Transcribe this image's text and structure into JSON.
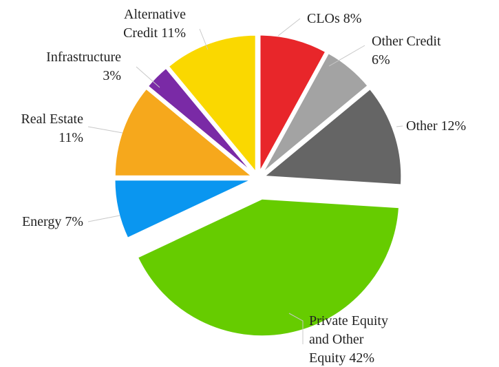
{
  "chart_data": {
    "type": "pie",
    "title": "",
    "unit": "%",
    "slices": [
      {
        "name": "CLOs",
        "value": 8,
        "color": "#e8262a",
        "label_lines": [
          "CLOs 8%"
        ]
      },
      {
        "name": "Other Credit",
        "value": 6,
        "color": "#a3a3a3",
        "label_lines": [
          "Other Credit",
          "6%"
        ]
      },
      {
        "name": "Other",
        "value": 12,
        "color": "#656565",
        "label_lines": [
          "Other 12%"
        ]
      },
      {
        "name": "Private Equity and Other Equity",
        "value": 42,
        "color": "#66cc00",
        "label_lines": [
          "Private Equity",
          "and Other",
          "Equity 42%"
        ]
      },
      {
        "name": "Energy",
        "value": 7,
        "color": "#0a96f0",
        "label_lines": [
          "Energy 7%"
        ]
      },
      {
        "name": "Real Estate",
        "value": 11,
        "color": "#f6a81c",
        "label_lines": [
          "Real Estate",
          "11%"
        ]
      },
      {
        "name": "Infrastructure",
        "value": 3,
        "color": "#7a2aa6",
        "label_lines": [
          "Infrastructure",
          "3%"
        ]
      },
      {
        "name": "Alternative Credit",
        "value": 11,
        "color": "#fad800",
        "label_lines": [
          "Alternative",
          "Credit 11%"
        ]
      }
    ],
    "exploded": [
      "Private Equity and Other Equity"
    ],
    "legend": "none",
    "start": "12 o'clock",
    "direction": "clockwise"
  }
}
